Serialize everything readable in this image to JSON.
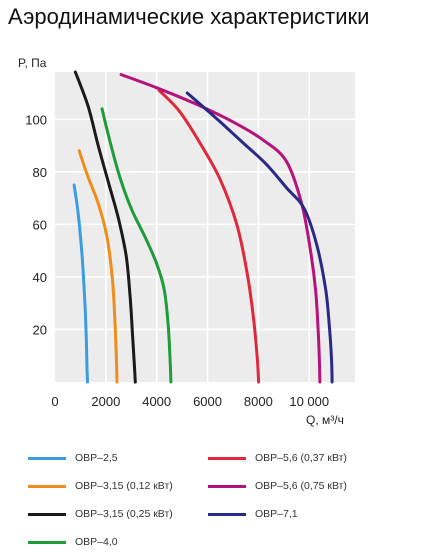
{
  "title": "Аэродинамические характеристики",
  "chart_data": {
    "type": "line",
    "title": "Аэродинамические характеристики",
    "xlabel": "Q, м³/ч",
    "ylabel": "P, Па",
    "xlim": [
      0,
      11800
    ],
    "ylim": [
      0,
      118
    ],
    "x_ticks": [
      0,
      2000,
      4000,
      6000,
      8000,
      10000
    ],
    "x_tick_labels": [
      "0",
      "2000",
      "4000",
      "6000",
      "8000",
      "10 000"
    ],
    "y_ticks": [
      20,
      40,
      60,
      80,
      100
    ],
    "y_tick_labels": [
      "20",
      "40",
      "60",
      "80",
      "100"
    ],
    "grid": true,
    "legend_position": "bottom",
    "series": [
      {
        "name": "ОВР–2,5",
        "color": "#3b9ce0",
        "points": [
          [
            750,
            75
          ],
          [
            900,
            65
          ],
          [
            1050,
            50
          ],
          [
            1150,
            35
          ],
          [
            1220,
            20
          ],
          [
            1260,
            5
          ],
          [
            1280,
            0
          ]
        ]
      },
      {
        "name": "ОВР–3,15 (0,12 кВт)",
        "color": "#f08c1a",
        "points": [
          [
            950,
            88
          ],
          [
            1300,
            78
          ],
          [
            1700,
            68
          ],
          [
            2050,
            55
          ],
          [
            2250,
            40
          ],
          [
            2350,
            25
          ],
          [
            2410,
            10
          ],
          [
            2440,
            0
          ]
        ]
      },
      {
        "name": "ОВР–3,15 (0,25 кВт)",
        "color": "#1a1a1a",
        "points": [
          [
            800,
            118
          ],
          [
            1300,
            105
          ],
          [
            1700,
            90
          ],
          [
            2100,
            76
          ],
          [
            2500,
            62
          ],
          [
            2800,
            48
          ],
          [
            2950,
            33
          ],
          [
            3050,
            18
          ],
          [
            3130,
            5
          ],
          [
            3160,
            0
          ]
        ]
      },
      {
        "name": "ОВР–4,0",
        "color": "#1e9c3a",
        "points": [
          [
            1850,
            104
          ],
          [
            2150,
            92
          ],
          [
            2550,
            78
          ],
          [
            3000,
            66
          ],
          [
            3550,
            55
          ],
          [
            4000,
            45
          ],
          [
            4300,
            35
          ],
          [
            4450,
            22
          ],
          [
            4520,
            10
          ],
          [
            4560,
            0
          ]
        ]
      },
      {
        "name": "ОВР–5,6 (0,37 кВт)",
        "color": "#e0283c",
        "points": [
          [
            4100,
            111
          ],
          [
            4900,
            103
          ],
          [
            5700,
            91
          ],
          [
            6500,
            77
          ],
          [
            7150,
            60
          ],
          [
            7550,
            42
          ],
          [
            7800,
            25
          ],
          [
            7950,
            10
          ],
          [
            8010,
            0
          ]
        ]
      },
      {
        "name": "ОВР–5,6 (0,75 кВт)",
        "color": "#b5127a",
        "points": [
          [
            2600,
            117
          ],
          [
            4000,
            112
          ],
          [
            5500,
            106
          ],
          [
            7000,
            99
          ],
          [
            8200,
            92
          ],
          [
            9100,
            84
          ],
          [
            9700,
            68
          ],
          [
            10050,
            50
          ],
          [
            10250,
            35
          ],
          [
            10350,
            20
          ],
          [
            10400,
            8
          ],
          [
            10420,
            0
          ]
        ]
      },
      {
        "name": "ОВР–7,1",
        "color": "#2a2a86",
        "points": [
          [
            5200,
            110
          ],
          [
            5800,
            105
          ],
          [
            6500,
            99
          ],
          [
            7400,
            91
          ],
          [
            8300,
            83
          ],
          [
            9100,
            74
          ],
          [
            9800,
            66
          ],
          [
            10300,
            52
          ],
          [
            10650,
            35
          ],
          [
            10800,
            20
          ],
          [
            10880,
            8
          ],
          [
            10900,
            0
          ]
        ]
      }
    ]
  }
}
